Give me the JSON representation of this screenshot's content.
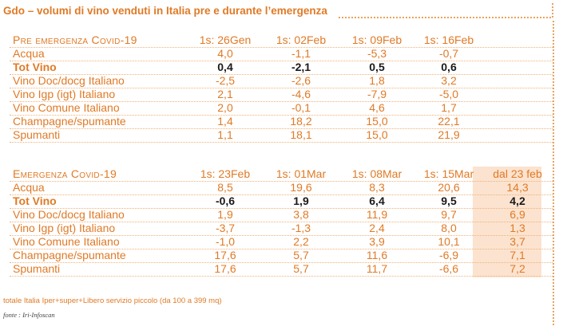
{
  "title": "Gdo – volumi di vino venduti in Italia pre e durante l’emergenza",
  "pre": {
    "heading": "Pre emergenza Covid-19",
    "columns": [
      "1s: 26Gen",
      "1s: 02Feb",
      "1s: 09Feb",
      "1s: 16Feb"
    ],
    "rows": [
      {
        "label": "Acqua",
        "values": [
          "4,0",
          "-1,1",
          "-5,3",
          "-0,7"
        ]
      },
      {
        "label": "Tot Vino",
        "values": [
          "0,4",
          "-2,1",
          "0,5",
          "0,6"
        ]
      },
      {
        "label": "Vino Doc/docg Italiano",
        "values": [
          "-2,5",
          "-2,6",
          "1,8",
          "3,2"
        ]
      },
      {
        "label": "Vino Igp (igt) Italiano",
        "values": [
          "2,1",
          "-4,6",
          "-7,9",
          "-5,0"
        ]
      },
      {
        "label": "Vino Comune Italiano",
        "values": [
          "2,0",
          "-0,1",
          "4,6",
          "1,7"
        ]
      },
      {
        "label": "Champagne/spumante",
        "values": [
          "1,4",
          "18,2",
          "15,0",
          "22,1"
        ]
      },
      {
        "label": "Spumanti",
        "values": [
          "1,1",
          "18,1",
          "15,0",
          "21,9"
        ]
      }
    ]
  },
  "emergency": {
    "heading": "Emergenza Covid-19",
    "columns": [
      "1s: 23Feb",
      "1s: 01Mar",
      "1s: 08Mar",
      "1s: 15Mar",
      "dal 23 feb"
    ],
    "rows": [
      {
        "label": "Acqua",
        "values": [
          "8,5",
          "19,6",
          "8,3",
          "20,6",
          "14,3"
        ]
      },
      {
        "label": "Tot Vino",
        "values": [
          "-0,6",
          "1,9",
          "6,4",
          "9,5",
          "4,2"
        ]
      },
      {
        "label": "Vino Doc/docg Italiano",
        "values": [
          "1,9",
          "3,8",
          "11,9",
          "9,7",
          "6,9"
        ]
      },
      {
        "label": "Vino Igp (igt) Italiano",
        "values": [
          "-3,7",
          "-1,3",
          "2,4",
          "8,0",
          "1,3"
        ]
      },
      {
        "label": "Vino Comune Italiano",
        "values": [
          "-1,0",
          "2,2",
          "3,9",
          "10,1",
          "3,7"
        ]
      },
      {
        "label": "Champagne/spumante",
        "values": [
          "17,6",
          "5,7",
          "11,6",
          "-6,9",
          "7,1"
        ]
      },
      {
        "label": "Spumanti",
        "values": [
          "17,6",
          "5,7",
          "11,7",
          "-6,6",
          "7,2"
        ]
      }
    ]
  },
  "footnote": "totale Italia Iper+super+Libero servizio piccolo (da 100 a 399 mq)",
  "source": "fonte : Iri-Infoscan",
  "colors": {
    "accent": "#e07a26",
    "shade": "#fbe3cf",
    "bold_text": "#1a1a1a"
  }
}
